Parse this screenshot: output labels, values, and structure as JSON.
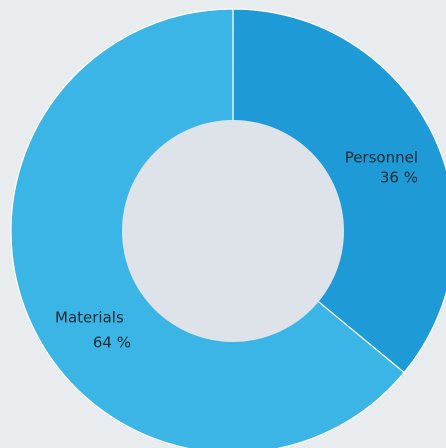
{
  "chart_data": {
    "type": "donut",
    "categories": [
      "Personnel",
      "Materials"
    ],
    "values": [
      36,
      64
    ],
    "value_labels": [
      "36 %",
      "64 %"
    ],
    "colors": [
      "#1e9ad6",
      "#3bb5e6"
    ]
  }
}
